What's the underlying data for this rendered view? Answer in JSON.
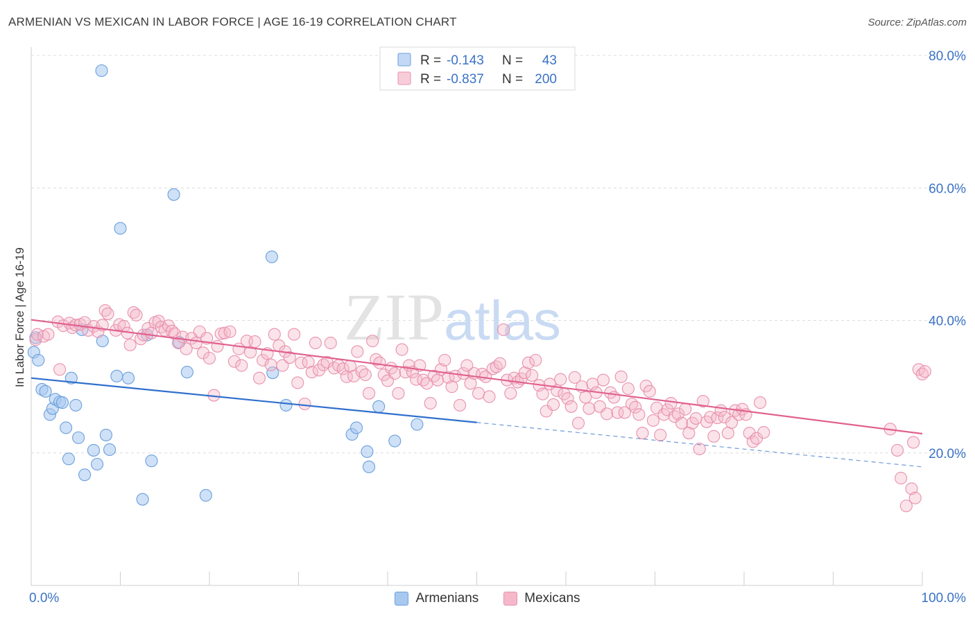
{
  "title": "ARMENIAN VS MEXICAN IN LABOR FORCE | AGE 16-19 CORRELATION CHART",
  "source": "Source: ZipAtlas.com",
  "watermark": "ZIPatlas",
  "colors": {
    "armenian_fill": "#a8c8f0",
    "armenian_stroke": "#6a9fdc",
    "armenian_line": "#2f6fcc",
    "mexican_fill": "#f5b8cb",
    "mexican_stroke": "#e891ad",
    "mexican_line": "#e0608e",
    "axis_label": "#3a72c6",
    "grid": "#dcdcdc"
  },
  "legend_top": {
    "rows": [
      {
        "r_label": "R = ",
        "r_value": "-0.143",
        "n_label": "N = ",
        "n_value": "43"
      },
      {
        "r_label": "R = ",
        "r_value": "-0.837",
        "n_label": "N = ",
        "n_value": "200"
      }
    ]
  },
  "chart_data": {
    "type": "scatter",
    "ylabel": "In Labor Force | Age 16-19",
    "xlim": [
      0,
      100
    ],
    "ylim": [
      0,
      80
    ],
    "x_tick_labels": [
      "0.0%",
      "100.0%"
    ],
    "y_ticks": [
      20,
      40,
      60,
      80
    ],
    "y_tick_labels": [
      "20.0%",
      "40.0%",
      "60.0%",
      "80.0%"
    ],
    "grid": true,
    "legend_position": "bottom",
    "series": [
      {
        "name": "Armenians",
        "r": -0.143,
        "n": 43,
        "trend": {
          "x0": 0,
          "y0": 31.3,
          "x1": 50,
          "y1": 24.6,
          "dashed_to_x": 100,
          "dashed_to_y": 17.9
        },
        "points": [
          [
            0.3,
            35.2
          ],
          [
            0.5,
            37.4
          ],
          [
            0.8,
            34.0
          ],
          [
            1.2,
            29.6
          ],
          [
            1.6,
            29.3
          ],
          [
            2.1,
            25.8
          ],
          [
            2.4,
            26.7
          ],
          [
            2.7,
            28.1
          ],
          [
            3.2,
            27.7
          ],
          [
            3.5,
            27.6
          ],
          [
            3.9,
            23.8
          ],
          [
            4.2,
            19.1
          ],
          [
            4.5,
            31.3
          ],
          [
            5.0,
            27.2
          ],
          [
            5.3,
            22.3
          ],
          [
            5.7,
            38.6
          ],
          [
            6.0,
            16.7
          ],
          [
            7.0,
            20.4
          ],
          [
            7.4,
            18.3
          ],
          [
            8.0,
            36.9
          ],
          [
            8.4,
            22.7
          ],
          [
            8.8,
            20.5
          ],
          [
            7.9,
            77.7
          ],
          [
            9.6,
            31.6
          ],
          [
            10.0,
            53.9
          ],
          [
            10.9,
            31.3
          ],
          [
            12.5,
            13.0
          ],
          [
            13.0,
            37.8
          ],
          [
            13.5,
            18.8
          ],
          [
            16.0,
            59.0
          ],
          [
            16.6,
            36.7
          ],
          [
            17.5,
            32.2
          ],
          [
            19.6,
            13.6
          ],
          [
            27.0,
            49.6
          ],
          [
            27.1,
            32.1
          ],
          [
            28.6,
            27.2
          ],
          [
            36.0,
            22.8
          ],
          [
            36.5,
            23.8
          ],
          [
            37.7,
            20.2
          ],
          [
            37.9,
            17.9
          ],
          [
            39.0,
            27.0
          ],
          [
            40.8,
            21.8
          ],
          [
            43.3,
            24.3
          ]
        ]
      },
      {
        "name": "Mexicans",
        "r": -0.837,
        "n": 200,
        "trend": {
          "x0": 0,
          "y0": 40.1,
          "x1": 100,
          "y1": 22.9
        },
        "points": [
          [
            0.5,
            37.1
          ],
          [
            0.7,
            37.9
          ],
          [
            1.4,
            37.6
          ],
          [
            1.9,
            37.9
          ],
          [
            3.0,
            39.8
          ],
          [
            3.2,
            32.6
          ],
          [
            3.6,
            39.2
          ],
          [
            4.3,
            39.6
          ],
          [
            4.6,
            38.9
          ],
          [
            5.0,
            39.3
          ],
          [
            5.5,
            39.4
          ],
          [
            6.0,
            39.7
          ],
          [
            6.4,
            38.5
          ],
          [
            7.0,
            39.1
          ],
          [
            7.5,
            38.3
          ],
          [
            8.0,
            39.3
          ],
          [
            8.3,
            41.5
          ],
          [
            8.6,
            41.0
          ],
          [
            9.5,
            38.5
          ],
          [
            9.9,
            39.4
          ],
          [
            10.4,
            39.1
          ],
          [
            10.8,
            38.1
          ],
          [
            11.1,
            36.3
          ],
          [
            11.5,
            41.2
          ],
          [
            11.8,
            40.8
          ],
          [
            12.3,
            37.2
          ],
          [
            12.6,
            37.8
          ],
          [
            13.1,
            38.8
          ],
          [
            13.5,
            38.1
          ],
          [
            13.9,
            39.7
          ],
          [
            14.3,
            39.9
          ],
          [
            14.6,
            39.0
          ],
          [
            15.0,
            38.5
          ],
          [
            15.4,
            39.2
          ],
          [
            15.8,
            38.4
          ],
          [
            16.1,
            38.0
          ],
          [
            16.5,
            36.6
          ],
          [
            17.0,
            37.5
          ],
          [
            17.4,
            35.7
          ],
          [
            18.0,
            37.3
          ],
          [
            18.5,
            36.6
          ],
          [
            18.9,
            38.3
          ],
          [
            19.3,
            35.1
          ],
          [
            19.7,
            37.3
          ],
          [
            20.0,
            34.3
          ],
          [
            20.5,
            28.7
          ],
          [
            20.9,
            36.1
          ],
          [
            21.3,
            38.0
          ],
          [
            21.7,
            38.1
          ],
          [
            22.3,
            38.3
          ],
          [
            22.8,
            33.8
          ],
          [
            23.3,
            35.7
          ],
          [
            23.6,
            33.2
          ],
          [
            24.2,
            36.9
          ],
          [
            24.6,
            35.2
          ],
          [
            25.1,
            36.8
          ],
          [
            25.6,
            31.3
          ],
          [
            26.0,
            34.0
          ],
          [
            26.5,
            35.0
          ],
          [
            26.9,
            33.3
          ],
          [
            27.3,
            37.9
          ],
          [
            27.8,
            36.2
          ],
          [
            28.2,
            33.2
          ],
          [
            28.5,
            35.3
          ],
          [
            29.0,
            34.4
          ],
          [
            29.5,
            37.9
          ],
          [
            29.9,
            30.6
          ],
          [
            30.3,
            33.6
          ],
          [
            30.7,
            27.4
          ],
          [
            31.1,
            33.7
          ],
          [
            31.5,
            32.2
          ],
          [
            31.9,
            36.6
          ],
          [
            32.3,
            32.5
          ],
          [
            32.8,
            33.3
          ],
          [
            33.2,
            33.7
          ],
          [
            33.6,
            36.6
          ],
          [
            34.0,
            32.8
          ],
          [
            34.5,
            33.2
          ],
          [
            35.0,
            32.7
          ],
          [
            35.4,
            31.5
          ],
          [
            35.8,
            33.1
          ],
          [
            36.2,
            31.6
          ],
          [
            36.6,
            35.3
          ],
          [
            37.1,
            32.3
          ],
          [
            37.5,
            31.8
          ],
          [
            37.9,
            29.0
          ],
          [
            38.3,
            36.9
          ],
          [
            38.7,
            34.1
          ],
          [
            39.1,
            33.6
          ],
          [
            39.6,
            31.8
          ],
          [
            40.0,
            30.9
          ],
          [
            40.4,
            32.8
          ],
          [
            40.8,
            32.0
          ],
          [
            41.2,
            29.0
          ],
          [
            41.6,
            35.6
          ],
          [
            42.0,
            32.2
          ],
          [
            42.4,
            33.2
          ],
          [
            42.8,
            32.2
          ],
          [
            43.2,
            31.1
          ],
          [
            43.6,
            33.2
          ],
          [
            44.0,
            31.0
          ],
          [
            44.4,
            30.5
          ],
          [
            44.8,
            27.5
          ],
          [
            45.2,
            31.6
          ],
          [
            45.6,
            31.0
          ],
          [
            46.0,
            32.6
          ],
          [
            46.4,
            34.0
          ],
          [
            46.8,
            31.4
          ],
          [
            47.2,
            30.0
          ],
          [
            47.6,
            31.6
          ],
          [
            48.1,
            27.2
          ],
          [
            48.5,
            32.0
          ],
          [
            48.9,
            33.2
          ],
          [
            49.3,
            30.5
          ],
          [
            49.7,
            32.0
          ],
          [
            50.2,
            29.0
          ],
          [
            50.6,
            31.9
          ],
          [
            51.0,
            31.5
          ],
          [
            51.4,
            28.5
          ],
          [
            51.8,
            32.7
          ],
          [
            52.2,
            33.0
          ],
          [
            52.6,
            33.5
          ],
          [
            53.0,
            38.6
          ],
          [
            53.4,
            31.0
          ],
          [
            53.8,
            29.0
          ],
          [
            54.2,
            31.3
          ],
          [
            54.6,
            30.7
          ],
          [
            55.0,
            31.2
          ],
          [
            55.4,
            32.1
          ],
          [
            55.8,
            33.6
          ],
          [
            56.2,
            31.7
          ],
          [
            56.6,
            34.0
          ],
          [
            57.0,
            30.2
          ],
          [
            57.4,
            28.9
          ],
          [
            57.8,
            26.3
          ],
          [
            58.2,
            30.4
          ],
          [
            58.6,
            27.3
          ],
          [
            59.0,
            29.4
          ],
          [
            59.4,
            31.1
          ],
          [
            59.8,
            28.9
          ],
          [
            60.2,
            28.2
          ],
          [
            60.6,
            27.0
          ],
          [
            61.0,
            31.4
          ],
          [
            61.4,
            24.5
          ],
          [
            61.8,
            30.0
          ],
          [
            62.2,
            28.4
          ],
          [
            62.6,
            26.7
          ],
          [
            63.0,
            30.4
          ],
          [
            63.4,
            29.1
          ],
          [
            63.8,
            27.0
          ],
          [
            64.2,
            31.0
          ],
          [
            64.6,
            25.9
          ],
          [
            65.0,
            29.1
          ],
          [
            65.4,
            28.4
          ],
          [
            65.8,
            26.1
          ],
          [
            66.2,
            31.5
          ],
          [
            66.6,
            26.1
          ],
          [
            67.0,
            29.7
          ],
          [
            67.4,
            27.4
          ],
          [
            67.8,
            26.9
          ],
          [
            68.2,
            25.8
          ],
          [
            68.6,
            23.0
          ],
          [
            69.0,
            30.1
          ],
          [
            69.4,
            29.3
          ],
          [
            69.8,
            24.9
          ],
          [
            70.2,
            26.8
          ],
          [
            70.6,
            22.7
          ],
          [
            71.0,
            25.8
          ],
          [
            71.4,
            26.5
          ],
          [
            71.8,
            27.5
          ],
          [
            72.2,
            25.5
          ],
          [
            72.6,
            25.9
          ],
          [
            73.0,
            24.5
          ],
          [
            73.4,
            26.6
          ],
          [
            73.8,
            23.0
          ],
          [
            74.2,
            24.5
          ],
          [
            74.6,
            25.2
          ],
          [
            75.0,
            20.6
          ],
          [
            75.4,
            27.8
          ],
          [
            75.8,
            24.7
          ],
          [
            76.2,
            25.4
          ],
          [
            76.6,
            22.5
          ],
          [
            77.0,
            25.3
          ],
          [
            77.4,
            26.4
          ],
          [
            77.8,
            25.4
          ],
          [
            78.2,
            23.0
          ],
          [
            78.6,
            24.6
          ],
          [
            79.0,
            26.4
          ],
          [
            79.4,
            25.8
          ],
          [
            79.8,
            26.6
          ],
          [
            80.2,
            25.8
          ],
          [
            80.6,
            23.0
          ],
          [
            81.0,
            21.7
          ],
          [
            81.4,
            22.2
          ],
          [
            81.8,
            27.6
          ],
          [
            82.2,
            23.1
          ],
          [
            96.4,
            23.6
          ],
          [
            97.2,
            20.4
          ],
          [
            97.6,
            16.2
          ],
          [
            98.2,
            12.0
          ],
          [
            98.8,
            14.6
          ],
          [
            99.2,
            13.2
          ],
          [
            99.6,
            32.6
          ],
          [
            100.0,
            31.9
          ],
          [
            100.3,
            32.3
          ],
          [
            99.0,
            21.6
          ]
        ]
      }
    ]
  },
  "legend_bottom": [
    {
      "label": "Armenians"
    },
    {
      "label": "Mexicans"
    }
  ]
}
